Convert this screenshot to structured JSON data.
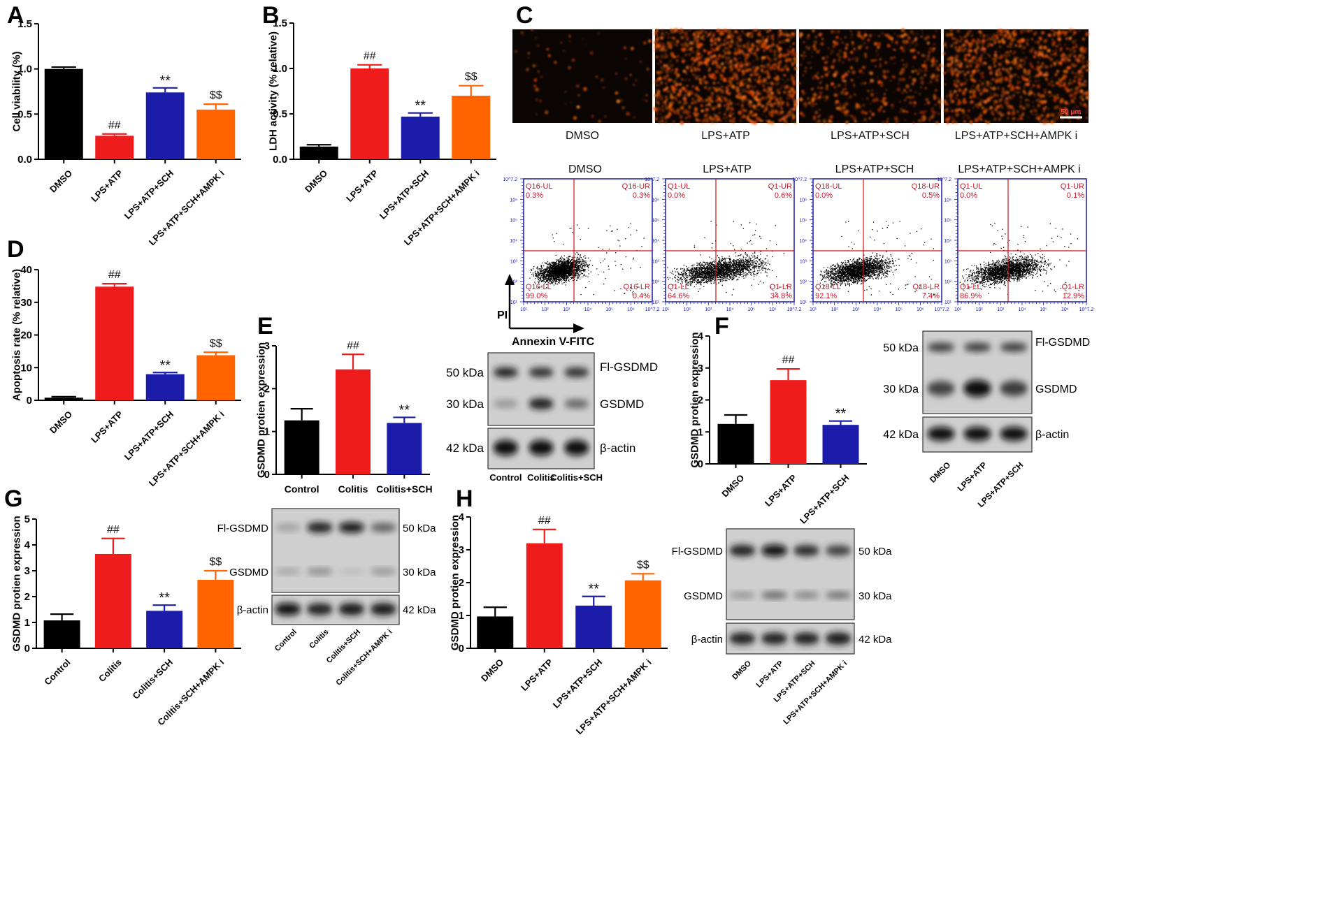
{
  "figure": {
    "marks": {
      "group_vs_control": "##",
      "sch_vs_lps": "**",
      "ampk_vs_sch": "$$"
    },
    "colors": {
      "black": "#000000",
      "red": "#ee1c1c",
      "blue": "#1c1caa",
      "orange": "#ff6400",
      "flow_axis": "#1a1aa8",
      "quadrant": "#d01010",
      "quadrant_text": "#c4182c"
    }
  },
  "panels": [
    {
      "id": "A",
      "letter": "A",
      "chart_data": {
        "type": "bar",
        "categories": [
          "DMSO",
          "LPS+ATP",
          "LPS+ATP+SCH",
          "LPS+ATP+SCH+AMPK i"
        ],
        "values": [
          1.0,
          0.26,
          0.74,
          0.55
        ],
        "errors": [
          0.02,
          0.02,
          0.05,
          0.06
        ],
        "colors": [
          "#000000",
          "#ee1c1c",
          "#1c1caa",
          "#ff6400"
        ],
        "marks": [
          "",
          "##",
          "**",
          "$$"
        ],
        "ylabel": "Cell viability (%)",
        "ylim": [
          0,
          1.5
        ],
        "yticks": [
          "0.0",
          "0.5",
          "1.0",
          "1.5"
        ]
      }
    },
    {
      "id": "B",
      "letter": "B",
      "chart_data": {
        "type": "bar",
        "categories": [
          "DMSO",
          "LPS+ATP",
          "LPS+ATP+SCH",
          "LPS+ATP+SCH+AMPK i"
        ],
        "values": [
          0.14,
          1.0,
          0.47,
          0.7
        ],
        "errors": [
          0.02,
          0.04,
          0.04,
          0.11
        ],
        "colors": [
          "#000000",
          "#ee1c1c",
          "#1c1caa",
          "#ff6400"
        ],
        "marks": [
          "",
          "##",
          "**",
          "$$"
        ],
        "ylabel": "LDH activity (% relative)",
        "ylim": [
          0,
          1.5
        ],
        "yticks": [
          "0.0",
          "0.5",
          "1.0",
          "1.5"
        ]
      }
    },
    {
      "id": "D",
      "letter": "D",
      "chart_data": {
        "type": "bar",
        "categories": [
          "DMSO",
          "LPS+ATP",
          "LPS+ATP+SCH",
          "LPS+ATP+SCH+AMPK i"
        ],
        "values": [
          0.8,
          34.8,
          8.0,
          13.8
        ],
        "errors": [
          0.3,
          0.9,
          0.5,
          0.9
        ],
        "colors": [
          "#000000",
          "#ee1c1c",
          "#1c1caa",
          "#ff6400"
        ],
        "marks": [
          "",
          "##",
          "**",
          "$$"
        ],
        "ylabel": "Apoptosis rate (% relative)",
        "ylim": [
          0,
          40
        ],
        "yticks": [
          "0",
          "10",
          "20",
          "30",
          "40"
        ]
      }
    },
    {
      "id": "E",
      "letter": "E",
      "chart_data": {
        "type": "bar",
        "categories": [
          "Control",
          "Colitis",
          "Colitis+SCH"
        ],
        "values": [
          1.26,
          2.45,
          1.2
        ],
        "errors": [
          0.27,
          0.35,
          0.13
        ],
        "colors": [
          "#000000",
          "#ee1c1c",
          "#1c1caa"
        ],
        "marks": [
          "",
          "##",
          "**"
        ],
        "ylabel": "GSDMD protien expression",
        "ylim": [
          0,
          3
        ],
        "yticks": [
          "0",
          "1",
          "2",
          "3"
        ]
      }
    },
    {
      "id": "F",
      "letter": "F",
      "chart_data": {
        "type": "bar",
        "categories": [
          "DMSO",
          "LPS+ATP",
          "LPS+ATP+SCH"
        ],
        "values": [
          1.25,
          2.62,
          1.22
        ],
        "errors": [
          0.28,
          0.35,
          0.12
        ],
        "colors": [
          "#000000",
          "#ee1c1c",
          "#1c1caa"
        ],
        "marks": [
          "",
          "##",
          "**"
        ],
        "ylabel": "GSDMD protien expression",
        "ylim": [
          0,
          4
        ],
        "yticks": [
          "0",
          "1",
          "2",
          "3",
          "4"
        ]
      }
    },
    {
      "id": "G",
      "letter": "G",
      "chart_data": {
        "type": "bar",
        "categories": [
          "Control",
          "Colitis",
          "Colitis+SCH",
          "Colitis+SCH+AMPK i"
        ],
        "values": [
          1.08,
          3.65,
          1.45,
          2.65
        ],
        "errors": [
          0.24,
          0.6,
          0.22,
          0.35
        ],
        "colors": [
          "#000000",
          "#ee1c1c",
          "#1c1caa",
          "#ff6400"
        ],
        "marks": [
          "",
          "##",
          "**",
          "$$"
        ],
        "ylabel": "GSDMD protien expression",
        "ylim": [
          0,
          5
        ],
        "yticks": [
          "0",
          "1",
          "2",
          "3",
          "4",
          "5"
        ]
      }
    },
    {
      "id": "H",
      "letter": "H",
      "chart_data": {
        "type": "bar",
        "categories": [
          "DMSO",
          "LPS+ATP",
          "LPS+ATP+SCH",
          "LPS+ATP+SCH+AMPK i"
        ],
        "values": [
          0.97,
          3.2,
          1.3,
          2.07
        ],
        "errors": [
          0.28,
          0.42,
          0.28,
          0.2
        ],
        "colors": [
          "#000000",
          "#ee1c1c",
          "#1c1caa",
          "#ff6400"
        ],
        "marks": [
          "",
          "##",
          "**",
          "$$"
        ],
        "ylabel": "GSDMD protien expression",
        "ylim": [
          0,
          4
        ],
        "yticks": [
          "0",
          "1",
          "2",
          "3",
          "4"
        ]
      }
    }
  ],
  "panel_c": {
    "letter": "C",
    "images": [
      {
        "label": "DMSO",
        "intensity": 0.05
      },
      {
        "label": "LPS+ATP",
        "intensity": 0.9
      },
      {
        "label": "LPS+ATP+SCH",
        "intensity": 0.35
      },
      {
        "label": "LPS+ATP+SCH+AMPK i",
        "intensity": 0.75
      }
    ],
    "scale_bar": "50 μm",
    "flow": {
      "y_axis_label": "PI",
      "x_axis_label": "Annexin V-FITC",
      "ticks": [
        "10¹",
        "10²",
        "10³",
        "10⁴",
        "10⁵",
        "10⁶",
        "10^7.2"
      ],
      "plots": [
        {
          "title": "DMSO",
          "quadrants": {
            "ul_name": "Q16-UL",
            "ul_value": "0.3%",
            "ur_name": "Q16-UR",
            "ur_value": "0.3%",
            "ll_name": "Q16-LL",
            "ll_value": "99.0%",
            "lr_name": "Q16-LR",
            "lr_value": "0.4%"
          },
          "spread": 0.2
        },
        {
          "title": "LPS+ATP",
          "quadrants": {
            "ul_name": "Q1-UL",
            "ul_value": "0.0%",
            "ur_name": "Q1-UR",
            "ur_value": "0.6%",
            "ll_name": "Q1-LL",
            "ll_value": "64.6%",
            "lr_name": "Q1-LR",
            "lr_value": "34.8%"
          },
          "spread": 0.8
        },
        {
          "title": "LPS+ATP+SCH",
          "quadrants": {
            "ul_name": "Q18-UL",
            "ul_value": "0.0%",
            "ur_name": "Q18-UR",
            "ur_value": "0.5%",
            "ll_name": "Q18-LL",
            "ll_value": "92.1%",
            "lr_name": "Q18-LR",
            "lr_value": "7.4%"
          },
          "spread": 0.45
        },
        {
          "title": "LPS+ATP+SCH+AMPK i",
          "quadrants": {
            "ul_name": "Q1-UL",
            "ul_value": "0.0%",
            "ur_name": "Q1-UR",
            "ur_value": "0.1%",
            "ll_name": "Q1-LL",
            "ll_value": "86.9%",
            "lr_name": "Q1-LR",
            "lr_value": "12.9%"
          },
          "spread": 0.6
        }
      ]
    }
  },
  "blots": [
    {
      "id": "E",
      "band_labels": [
        "Fl-GSDMD",
        "GSDMD",
        "β-actin"
      ],
      "kda_labels": [
        "50 kDa",
        "30 kDa",
        "42 kDa"
      ],
      "lanes": [
        "Control",
        "Colitis",
        "Colitis+SCH"
      ],
      "intensities": {
        "fl": [
          0.9,
          0.85,
          0.85
        ],
        "gs": [
          0.3,
          0.95,
          0.55
        ],
        "actin": [
          1,
          1,
          1
        ]
      }
    },
    {
      "id": "F",
      "band_labels": [
        "Fl-GSDMD",
        "GSDMD",
        "β-actin"
      ],
      "kda_labels": [
        "50 kDa",
        "30 kDa",
        "42 kDa"
      ],
      "lanes": [
        "DMSO",
        "LPS+ATP",
        "LPS+ATP+SCH"
      ],
      "intensities": {
        "fl": [
          0.8,
          0.8,
          0.8
        ],
        "gs": [
          0.7,
          1,
          0.75
        ],
        "actin": [
          1,
          1,
          1
        ]
      }
    },
    {
      "id": "G",
      "band_labels": [
        "Fl-GSDMD",
        "GSDMD",
        "β-actin"
      ],
      "kda_labels": [
        "50 kDa",
        "30 kDa",
        "42 kDa"
      ],
      "lanes": [
        "Control",
        "Colitis",
        "Colitis+SCH",
        "Colitis+SCH+AMPK i"
      ],
      "intensities": {
        "fl": [
          0.25,
          0.95,
          1,
          0.6
        ],
        "gs": [
          0.25,
          0.4,
          0.1,
          0.35
        ],
        "actin": [
          1,
          0.9,
          0.95,
          0.95
        ]
      }
    },
    {
      "id": "H",
      "band_labels": [
        "Fl-GSDMD",
        "GSDMD",
        "β-actin"
      ],
      "kda_labels": [
        "50 kDa",
        "30 kDa",
        "42 kDa"
      ],
      "lanes": [
        "DMSO",
        "LPS+ATP",
        "LPS+ATP+SCH",
        "LPS+ATP+SCH+AMPK i"
      ],
      "intensities": {
        "fl": [
          0.9,
          1,
          0.85,
          0.75
        ],
        "gs": [
          0.35,
          0.6,
          0.45,
          0.55
        ],
        "actin": [
          0.9,
          0.9,
          0.9,
          0.95
        ]
      }
    }
  ]
}
